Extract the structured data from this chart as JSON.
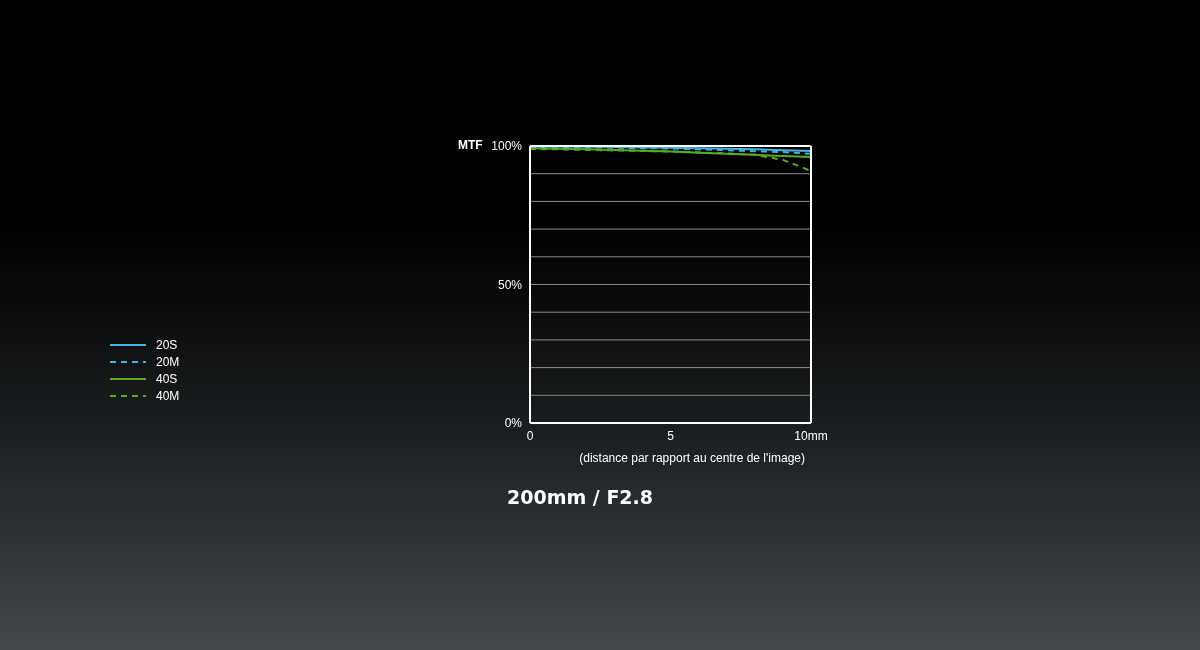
{
  "chart_data": {
    "type": "line",
    "title": "200mm / F2.8",
    "ylabel": "MTF",
    "xlabel": "(distance par rapport au centre de l'image)",
    "x": [
      0,
      1,
      2,
      3,
      4,
      5,
      6,
      7,
      8,
      9,
      10
    ],
    "series": [
      {
        "name": "20S",
        "color": "#3cb4e6",
        "line_style": "solid",
        "values": [
          99.8,
          99.8,
          99.7,
          99.6,
          99.5,
          99.4,
          99.2,
          99,
          98.8,
          98.5,
          98.2
        ]
      },
      {
        "name": "20M",
        "color": "#3cb4e6",
        "line_style": "dashed",
        "values": [
          99.6,
          99.6,
          99.5,
          99.4,
          99.2,
          99.1,
          98.8,
          98.5,
          98.1,
          97.8,
          97.2
        ]
      },
      {
        "name": "40S",
        "color": "#5aaa1e",
        "line_style": "solid",
        "values": [
          99.2,
          99,
          98.8,
          98.6,
          98.3,
          98,
          97.6,
          97.2,
          96.8,
          96.4,
          96
        ]
      },
      {
        "name": "40M",
        "color": "#5aaa1e",
        "line_style": "dashed",
        "values": [
          98.9,
          98.8,
          98.6,
          98.4,
          98.2,
          98,
          97.7,
          97.3,
          96.8,
          95,
          91
        ]
      }
    ],
    "xlim": [
      0,
      10
    ],
    "xticks": [
      0,
      5,
      {
        "value": 10,
        "label": "10mm"
      }
    ],
    "ylim": [
      0,
      100
    ],
    "yticks": [
      {
        "value": 0,
        "label": "0%"
      },
      {
        "value": 10,
        "label": null
      },
      {
        "value": 20,
        "label": null
      },
      {
        "value": 30,
        "label": null
      },
      {
        "value": 40,
        "label": null
      },
      {
        "value": 50,
        "label": "50%"
      },
      {
        "value": 60,
        "label": null
      },
      {
        "value": 70,
        "label": null
      },
      {
        "value": 80,
        "label": null
      },
      {
        "value": 90,
        "label": null
      },
      {
        "value": 100,
        "label": "100%"
      }
    ],
    "grid": "y",
    "legend": "left",
    "marker": "none"
  }
}
